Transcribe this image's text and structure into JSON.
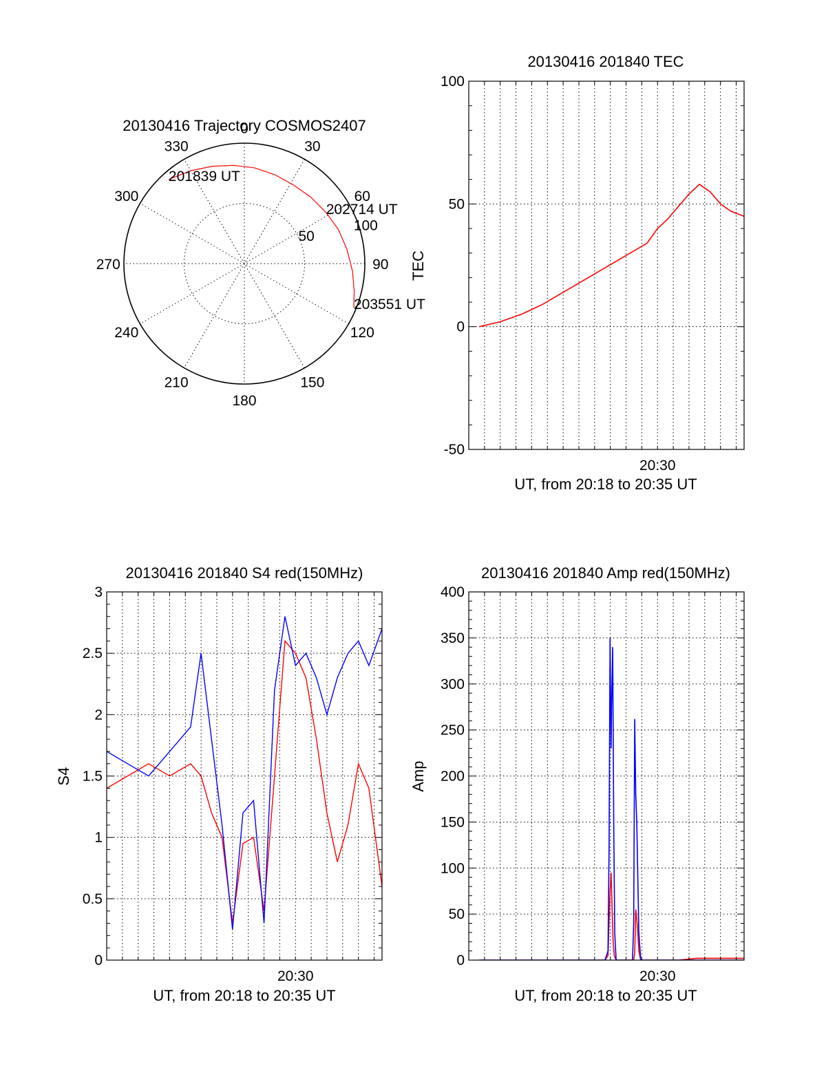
{
  "colors": {
    "red": "#ff0000",
    "blue": "#0000ff"
  },
  "chart_data": [
    {
      "type": "polar",
      "title": "20130416 Trajectory COSMOS2407",
      "azimuth_labels": [
        "0",
        "30",
        "60",
        "90",
        "120",
        "150",
        "180",
        "210",
        "240",
        "270",
        "300",
        "330"
      ],
      "radius_labels": [
        "50",
        "100"
      ],
      "trajectory": {
        "color": "#ff0000",
        "points": [
          {
            "az": 318,
            "zen": 94
          },
          {
            "az": 330,
            "zen": 89
          },
          {
            "az": 342,
            "zen": 85
          },
          {
            "az": 354,
            "zen": 82
          },
          {
            "az": 6,
            "zen": 80
          },
          {
            "az": 19,
            "zen": 78
          },
          {
            "az": 32,
            "zen": 77
          },
          {
            "az": 45,
            "zen": 78
          },
          {
            "az": 58,
            "zen": 80
          },
          {
            "az": 70,
            "zen": 83
          },
          {
            "az": 82,
            "zen": 86
          },
          {
            "az": 94,
            "zen": 90
          },
          {
            "az": 104,
            "zen": 94
          },
          {
            "az": 112,
            "zen": 98
          }
        ]
      },
      "annotations": [
        {
          "text": "201839 UT",
          "az": 318,
          "zen": 94
        },
        {
          "text": "202714 UT",
          "az": 58,
          "zen": 80
        },
        {
          "text": "203551 UT",
          "az": 112,
          "zen": 98
        }
      ]
    },
    {
      "type": "line",
      "title": "20130416 201840 TEC",
      "ylabel": "TEC",
      "xlabel": "UT, from 20:18 to 20:35 UT",
      "xlim": [
        20.3,
        20.5917
      ],
      "ylim": [
        -50,
        100
      ],
      "yticks": [
        "-50",
        "0",
        "50",
        "100"
      ],
      "xticks": [
        {
          "value": 20.5,
          "label": "20:30"
        }
      ],
      "series": [
        {
          "color": "#ff0000",
          "x": [
            20.3111,
            20.3333,
            20.3556,
            20.3778,
            20.4,
            20.4222,
            20.4444,
            20.4667,
            20.4889,
            20.5,
            20.5111,
            20.5222,
            20.5333,
            20.5444,
            20.5556,
            20.5667,
            20.5778,
            20.5917
          ],
          "y": [
            0,
            2,
            5,
            9,
            14,
            19,
            24,
            29,
            34,
            40,
            44,
            49,
            54,
            58,
            55,
            50,
            47,
            45
          ]
        }
      ]
    },
    {
      "type": "line",
      "title": "20130416 201840 S4 red(150MHz)",
      "ylabel": "S4",
      "xlabel": "UT, from 20:18 to 20:35 UT",
      "xlim": [
        20.3,
        20.5917
      ],
      "ylim": [
        0,
        3
      ],
      "yticks": [
        "0",
        "0.5",
        "1",
        "1.5",
        "2",
        "2.5",
        "3"
      ],
      "xticks": [
        {
          "value": 20.5,
          "label": "20:30"
        }
      ],
      "series": [
        {
          "color": "#ff0000",
          "x": [
            20.3,
            20.3222,
            20.3444,
            20.3667,
            20.3889,
            20.4,
            20.4111,
            20.4222,
            20.4333,
            20.4444,
            20.4556,
            20.4667,
            20.4778,
            20.4889,
            20.5,
            20.5111,
            20.5222,
            20.5333,
            20.5444,
            20.5556,
            20.5667,
            20.5778,
            20.5917
          ],
          "y": [
            1.4,
            1.5,
            1.6,
            1.5,
            1.6,
            1.5,
            1.2,
            1.0,
            0.3,
            0.95,
            1.0,
            0.4,
            1.5,
            2.6,
            2.5,
            2.3,
            1.8,
            1.2,
            0.8,
            1.1,
            1.6,
            1.4,
            0.6
          ]
        },
        {
          "color": "#0000ff",
          "x": [
            20.3,
            20.3222,
            20.3444,
            20.3667,
            20.3889,
            20.4,
            20.4111,
            20.4222,
            20.4333,
            20.4444,
            20.4556,
            20.4667,
            20.4778,
            20.4889,
            20.5,
            20.5111,
            20.5222,
            20.5333,
            20.5444,
            20.5556,
            20.5667,
            20.5778,
            20.5917
          ],
          "y": [
            1.7,
            1.6,
            1.5,
            1.7,
            1.9,
            2.5,
            1.8,
            1.1,
            0.25,
            1.2,
            1.3,
            0.3,
            2.2,
            2.8,
            2.4,
            2.5,
            2.3,
            2.0,
            2.3,
            2.5,
            2.6,
            2.4,
            2.7
          ]
        }
      ]
    },
    {
      "type": "line",
      "title": "20130416 201840 Amp red(150MHz)",
      "ylabel": "Amp",
      "xlabel": "UT, from 20:18 to 20:35 UT",
      "xlim": [
        20.3,
        20.5917
      ],
      "ylim": [
        0,
        400
      ],
      "yticks": [
        "0",
        "50",
        "100",
        "150",
        "200",
        "250",
        "300",
        "350",
        "400"
      ],
      "xticks": [
        {
          "value": 20.5,
          "label": "20:30"
        }
      ],
      "series": [
        {
          "color": "#ff0000",
          "x": [
            20.3111,
            20.4444,
            20.4475,
            20.4486,
            20.4497,
            20.4508,
            20.4519,
            20.453,
            20.4541,
            20.4561,
            20.4747,
            20.4758,
            20.4769,
            20.478,
            20.4791,
            20.4802,
            20.4822,
            20.5222,
            20.5417,
            20.5917
          ],
          "y": [
            0,
            0,
            5,
            40,
            75,
            95,
            55,
            20,
            5,
            0,
            0,
            8,
            55,
            45,
            30,
            10,
            0,
            0,
            2,
            2
          ]
        },
        {
          "color": "#0000ff",
          "x": [
            20.3111,
            20.4444,
            20.4475,
            20.4486,
            20.4497,
            20.4508,
            20.4514,
            20.4525,
            20.4536,
            20.4547,
            20.4561,
            20.4735,
            20.4747,
            20.4758,
            20.4769,
            20.478,
            20.4791,
            20.4802,
            20.4822,
            20.5917
          ],
          "y": [
            0,
            0,
            10,
            120,
            350,
            230,
            280,
            340,
            150,
            30,
            0,
            0,
            40,
            262,
            180,
            150,
            90,
            30,
            0,
            0
          ]
        }
      ]
    }
  ]
}
